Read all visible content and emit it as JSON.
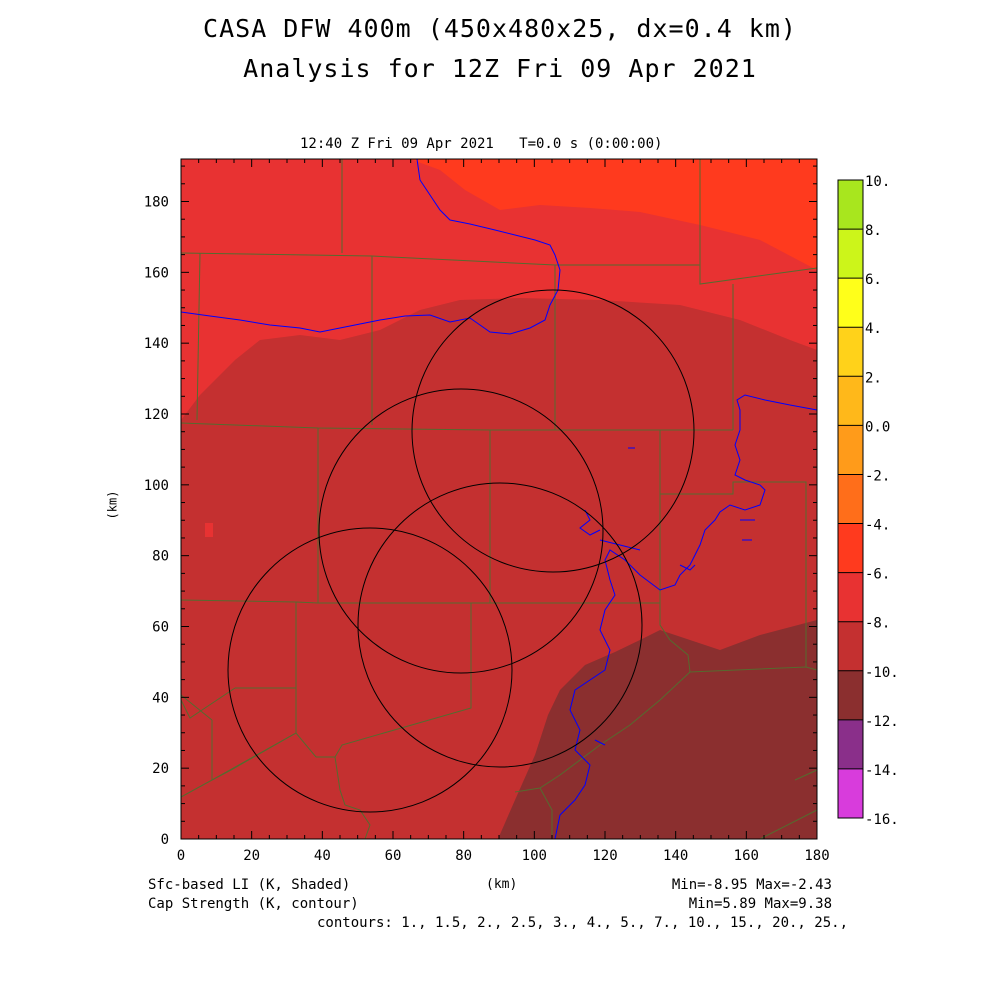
{
  "header": {
    "title_line1": "CASA DFW 400m (450x480x25, dx=0.4 km)",
    "title_line2": "Analysis for 12Z Fri 09 Apr 2021",
    "time_line": "12:40 Z Fri 09 Apr 2021   T=0.0 s (0:00:00)"
  },
  "axes": {
    "x_label": "(km)",
    "y_label": "(km)",
    "x_ticks": [
      "0",
      "20",
      "40",
      "60",
      "80",
      "100",
      "120",
      "140",
      "160",
      "180"
    ],
    "y_ticks": [
      "0",
      "20",
      "40",
      "60",
      "80",
      "100",
      "120",
      "140",
      "160",
      "180"
    ]
  },
  "footer": {
    "field1": "Sfc-based LI (K, Shaded)",
    "field2": "Cap Strength (K, contour)",
    "stats1": "Min=-8.95 Max=-2.43",
    "stats2": "Min=5.89 Max=9.38",
    "contours": "contours: 1., 1.5, 2., 2.5, 3., 4., 5., 7., 10., 15., 20., 25.,"
  },
  "colorbar": {
    "labels": [
      "10.",
      "8.",
      "6.",
      "4.",
      "2.",
      "0.0",
      "-2.",
      "-4.",
      "-6.",
      "-8.",
      "-10.",
      "-12.",
      "-14.",
      "-16."
    ],
    "colors": [
      "#a8e61e",
      "#ccf51a",
      "#ffff1a",
      "#ffd21a",
      "#ffb81a",
      "#ff9b1a",
      "#ff6e1a",
      "#ff3a1e",
      "#e83232",
      "#c43030",
      "#8b2f2f",
      "#8a2f8a",
      "#c030c0",
      "#d83cdc"
    ]
  },
  "map_colors": {
    "shade_m4_to_m2": "#ff3a1e",
    "shade_m6_to_m4": "#e83232",
    "shade_m8_to_m6": "#c43030",
    "shade_m10_to_m8": "#8b2f2f",
    "county_lines": "#556b2f",
    "rivers": "#0000ff",
    "radar_rings": "#000000"
  }
}
